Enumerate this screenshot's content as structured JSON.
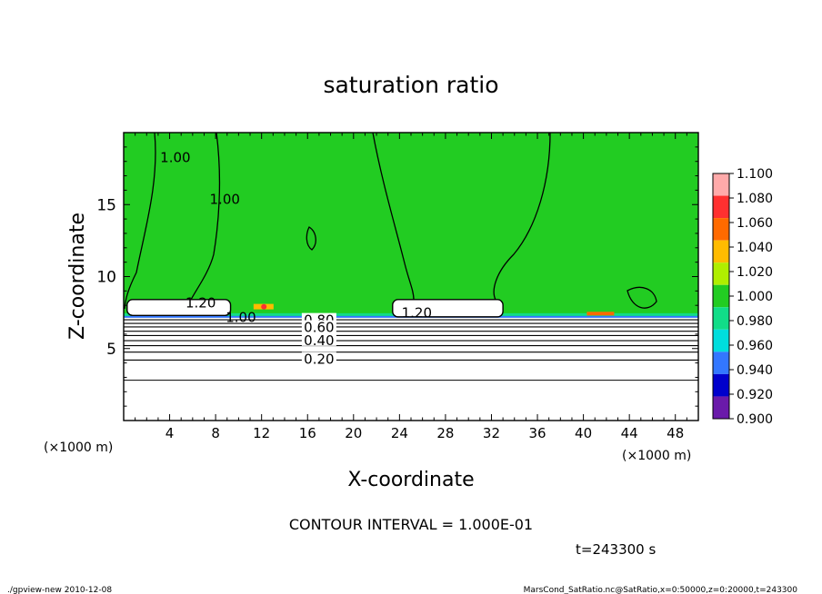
{
  "chart_data": {
    "type": "heatmap",
    "title": "saturation ratio",
    "xlabel": "X-coordinate",
    "ylabel": "Z-coordinate",
    "x_unit_left": "(×1000 m)",
    "x_unit_right": "(×1000 m)",
    "xlim": [
      0,
      50
    ],
    "ylim": [
      0,
      20
    ],
    "x_ticks": [
      {
        "v": 4,
        "label": "4"
      },
      {
        "v": 8,
        "label": "8"
      },
      {
        "v": 12,
        "label": "12"
      },
      {
        "v": 16,
        "label": "16"
      },
      {
        "v": 20,
        "label": "20"
      },
      {
        "v": 24,
        "label": "24"
      },
      {
        "v": 28,
        "label": "28"
      },
      {
        "v": 32,
        "label": "32"
      },
      {
        "v": 36,
        "label": "36"
      },
      {
        "v": 40,
        "label": "40"
      },
      {
        "v": 44,
        "label": "44"
      },
      {
        "v": 48,
        "label": "48"
      }
    ],
    "y_ticks": [
      {
        "v": 5,
        "label": "5"
      },
      {
        "v": 10,
        "label": "10"
      },
      {
        "v": 15,
        "label": "15"
      }
    ],
    "colorbar": {
      "levels": [
        "1.100",
        "1.080",
        "1.060",
        "1.040",
        "1.020",
        "1.000",
        "0.980",
        "0.960",
        "0.940",
        "0.920",
        "0.900"
      ],
      "colors": [
        "#ffaaaa",
        "#ff3030",
        "#ff6a00",
        "#ffbb00",
        "#b0ee00",
        "#22cc22",
        "#11dd88",
        "#00dddd",
        "#3377ff",
        "#0000cc",
        "#6a1aaa"
      ]
    },
    "fill_color": "#22cc22",
    "contour_labels": [
      {
        "text": "1.00",
        "x": 4.5,
        "z": 18.2
      },
      {
        "text": "1.00",
        "x": 8.8,
        "z": 15.3
      },
      {
        "text": "1.20",
        "x": 6.7,
        "z": 8.1
      },
      {
        "text": "1.00",
        "x": 10.2,
        "z": 7.1
      },
      {
        "text": "1.20",
        "x": 25.5,
        "z": 7.4
      },
      {
        "text": "0.80",
        "x": 17.0,
        "z": 6.9
      },
      {
        "text": "0.60",
        "x": 17.0,
        "z": 6.4
      },
      {
        "text": "0.40",
        "x": 17.0,
        "z": 5.5
      },
      {
        "text": "0.20",
        "x": 17.0,
        "z": 4.2
      }
    ],
    "lower_contours_z": [
      7.0,
      6.75,
      6.5,
      6.2,
      5.9,
      5.55,
      5.2,
      4.75,
      4.2,
      2.8
    ]
  },
  "annotations": {
    "contour_interval": "CONTOUR INTERVAL = 1.000E-01",
    "time": "t=243300 s"
  },
  "footer": {
    "left": "./gpview-new  2010-12-08",
    "right": "MarsCond_SatRatio.nc@SatRatio,x=0:50000,z=0:20000,t=243300"
  }
}
